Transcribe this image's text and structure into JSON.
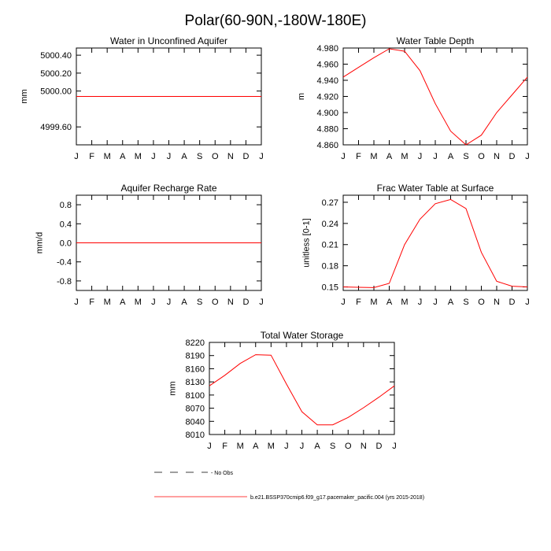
{
  "figure_title": "Polar(60-90N,-180W-180E)",
  "legend": {
    "obs_label": "No Obs",
    "model_label": "b.e21.BSSP370cmip6.f09_g17.pacemaker_pacific.004 (yrs 2015-2018)",
    "obs_color": "#000000",
    "model_color": "#ff0000"
  },
  "chart_data": [
    {
      "type": "line",
      "title": "Water in Unconfined Aquifer",
      "ylabel": "mm",
      "categories": [
        "J",
        "F",
        "M",
        "A",
        "M",
        "J",
        "J",
        "A",
        "S",
        "O",
        "N",
        "D",
        "J"
      ],
      "ylim": [
        4999.4,
        5000.48
      ],
      "yticks": [
        4999.6,
        5000.0,
        5000.2,
        5000.4
      ],
      "yticklabels": [
        "4999.60",
        "5000.00",
        "5000.20",
        "5000.40"
      ],
      "series": [
        {
          "values": [
            4999.94,
            4999.94,
            4999.94,
            4999.94,
            4999.94,
            4999.94,
            4999.94,
            4999.94,
            4999.94,
            4999.94,
            4999.94,
            4999.94,
            4999.94
          ],
          "color": "#ff0000"
        }
      ]
    },
    {
      "type": "line",
      "title": "Water Table Depth",
      "ylabel": "m",
      "categories": [
        "J",
        "F",
        "M",
        "A",
        "M",
        "J",
        "J",
        "A",
        "S",
        "O",
        "N",
        "D",
        "J"
      ],
      "ylim": [
        4.86,
        4.98
      ],
      "yticks": [
        4.86,
        4.88,
        4.9,
        4.92,
        4.94,
        4.96,
        4.98
      ],
      "yticklabels": [
        "4.860",
        "4.880",
        "4.900",
        "4.920",
        "4.940",
        "4.960",
        "4.980"
      ],
      "series": [
        {
          "values": [
            4.944,
            4.956,
            4.968,
            4.979,
            4.976,
            4.952,
            4.911,
            4.877,
            4.86,
            4.872,
            4.9,
            4.922,
            4.944
          ],
          "color": "#ff0000"
        }
      ]
    },
    {
      "type": "line",
      "title": "Aquifer Recharge Rate",
      "ylabel": "mm/d",
      "categories": [
        "J",
        "F",
        "M",
        "A",
        "M",
        "J",
        "J",
        "A",
        "S",
        "O",
        "N",
        "D",
        "J"
      ],
      "ylim": [
        -1.0,
        1.0
      ],
      "yticks": [
        -0.8,
        -0.4,
        0.0,
        0.4,
        0.8
      ],
      "yticklabels": [
        "-0.8",
        "-0.4",
        "0.0",
        "0.4",
        "0.8"
      ],
      "series": [
        {
          "values": [
            0,
            0,
            0,
            0,
            0,
            0,
            0,
            0,
            0,
            0,
            0,
            0,
            0
          ],
          "color": "#ff0000"
        }
      ]
    },
    {
      "type": "line",
      "title": "Frac Water Table at Surface",
      "ylabel": "unitless [0-1]",
      "categories": [
        "J",
        "F",
        "M",
        "A",
        "M",
        "J",
        "J",
        "A",
        "S",
        "O",
        "N",
        "D",
        "J"
      ],
      "ylim": [
        0.145,
        0.28
      ],
      "yticks": [
        0.15,
        0.18,
        0.21,
        0.24,
        0.27
      ],
      "yticklabels": [
        "0.15",
        "0.18",
        "0.21",
        "0.24",
        "0.27"
      ],
      "series": [
        {
          "values": [
            0.15,
            0.1495,
            0.149,
            0.155,
            0.21,
            0.246,
            0.268,
            0.274,
            0.261,
            0.199,
            0.158,
            0.151,
            0.15
          ],
          "color": "#ff0000"
        }
      ]
    },
    {
      "type": "line",
      "title": "Total Water Storage",
      "ylabel": "mm",
      "categories": [
        "J",
        "F",
        "M",
        "A",
        "M",
        "J",
        "J",
        "A",
        "S",
        "O",
        "N",
        "D",
        "J"
      ],
      "ylim": [
        8010,
        8220
      ],
      "yticks": [
        8010,
        8040,
        8070,
        8100,
        8130,
        8160,
        8190,
        8220
      ],
      "yticklabels": [
        "8010",
        "8040",
        "8070",
        "8100",
        "8130",
        "8160",
        "8190",
        "8220"
      ],
      "series": [
        {
          "values": [
            8121,
            8145,
            8172,
            8192,
            8191,
            8125,
            8062,
            8032,
            8032,
            8049,
            8071,
            8095,
            8121
          ],
          "color": "#ff0000"
        }
      ]
    }
  ]
}
